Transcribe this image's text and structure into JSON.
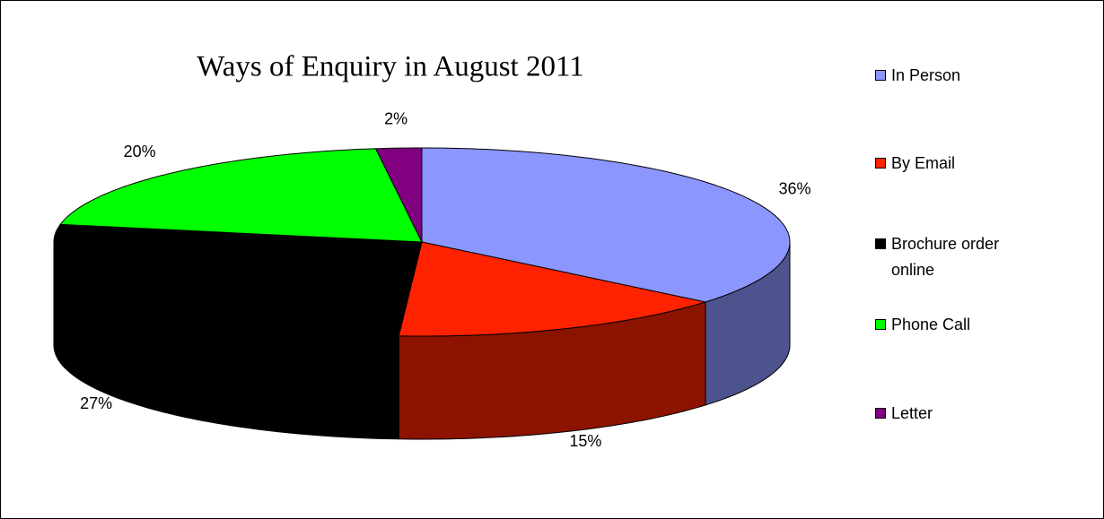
{
  "chart_data": {
    "type": "pie",
    "title": "Ways of Enquiry in August 2011",
    "categories": [
      "In Person",
      "By Email",
      "Brochure order online",
      "Phone Call",
      "Letter"
    ],
    "values": [
      36,
      15,
      27,
      20,
      2
    ],
    "value_labels": [
      "36%",
      "15%",
      "27%",
      "20%",
      "2%"
    ],
    "colors": [
      "#8c96ff",
      "#ff2200",
      "#000000",
      "#00ff00",
      "#800080"
    ],
    "legend": "right"
  }
}
